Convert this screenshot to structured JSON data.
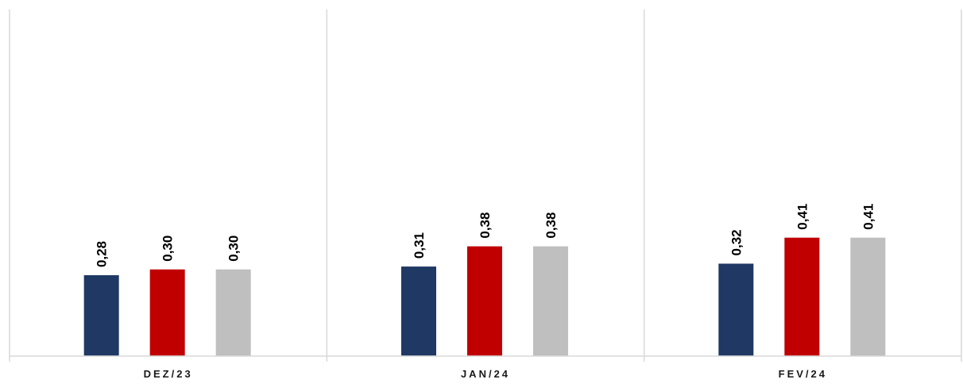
{
  "chart_data": {
    "type": "bar",
    "categories": [
      "DEZ/23",
      "JAN/24",
      "FEV/24"
    ],
    "series": [
      {
        "values": [
          0.28,
          0.31,
          0.32
        ],
        "color": "#1F3864",
        "labels": [
          "0,28",
          "0,31",
          "0,32"
        ]
      },
      {
        "values": [
          0.3,
          0.38,
          0.41
        ],
        "color": "#C00000",
        "labels": [
          "0,30",
          "0,38",
          "0,41"
        ]
      },
      {
        "values": [
          0.3,
          0.38,
          0.41
        ],
        "color": "#BFBFBF",
        "labels": [
          "0,30",
          "0,38",
          "0,41"
        ]
      }
    ],
    "ylim": [
      0,
      1.2
    ],
    "grid": false,
    "category_separators": true,
    "data_labels_rotated": true
  }
}
